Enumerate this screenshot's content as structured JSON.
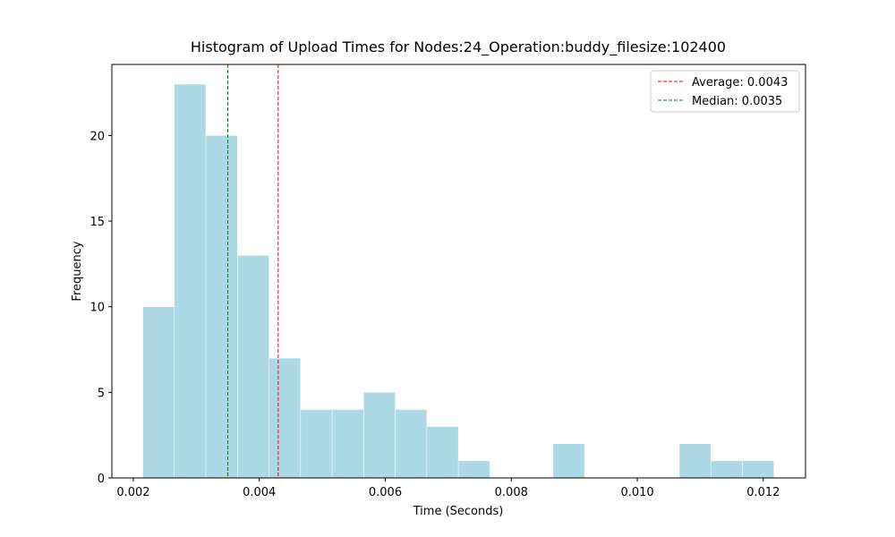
{
  "chart_data": {
    "type": "histogram",
    "title": "Histogram of Upload Times for Nodes:24_Operation:buddy_filesize:102400",
    "x_label": "Time (Seconds)",
    "y_label": "Frequency",
    "bins": [
      0.00215,
      0.002651,
      0.003152,
      0.003653,
      0.004154,
      0.004655,
      0.005156,
      0.005657,
      0.006158,
      0.006659,
      0.00716,
      0.007661,
      0.008162,
      0.008663,
      0.009164,
      0.009665,
      0.010166,
      0.010667,
      0.011168,
      0.011669,
      0.01217
    ],
    "counts": [
      10,
      23,
      20,
      13,
      7,
      4,
      4,
      5,
      4,
      3,
      1,
      0,
      0,
      2,
      0,
      0,
      0,
      2,
      1,
      1
    ],
    "color": "#add8e6",
    "xlim": [
      0.00166,
      0.01267
    ],
    "ylim": [
      0,
      24.15
    ],
    "xticks": [
      0.002,
      0.004,
      0.006,
      0.008,
      {
        "value": 0.01,
        "label": "0.010"
      },
      0.012
    ],
    "yticks": [
      0,
      5,
      10,
      15,
      20
    ],
    "reference_lines": [
      {
        "name": "Average: 0.0043",
        "value": 0.0043,
        "color": "#ff0000"
      },
      {
        "name": "Median: 0.0035",
        "value": 0.0035,
        "color": "#008000"
      }
    ],
    "legend": "upper right"
  }
}
